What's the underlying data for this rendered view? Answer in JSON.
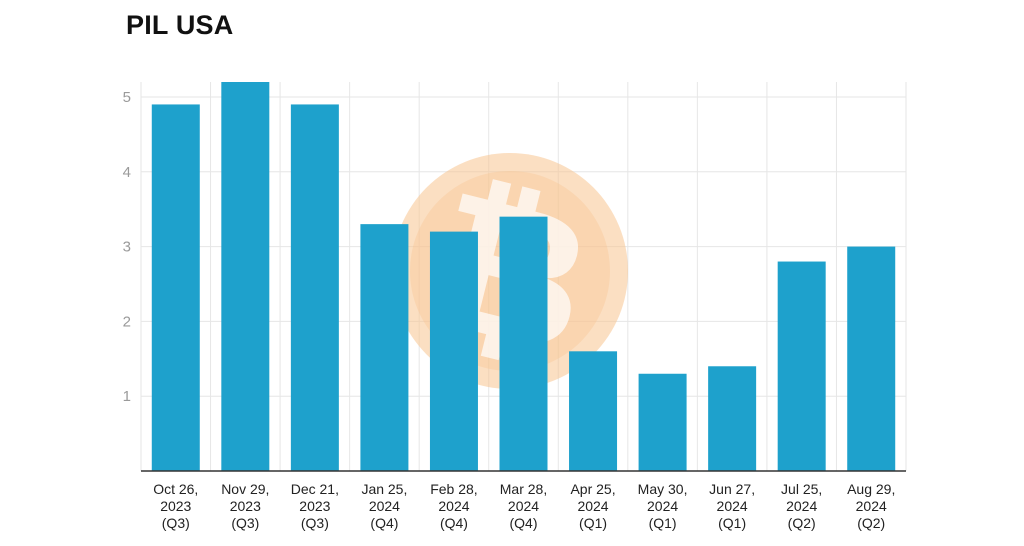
{
  "chart_data": {
    "type": "bar",
    "title": "PIL USA",
    "xlabel": "",
    "ylabel": "",
    "ylim": [
      0,
      5.2
    ],
    "y_ticks": [
      "1",
      "2",
      "3",
      "4",
      "5"
    ],
    "grid": true,
    "categories": [
      [
        "Oct 26,",
        "2023",
        "(Q3)"
      ],
      [
        "Nov 29,",
        "2023",
        "(Q3)"
      ],
      [
        "Dec 21,",
        "2023",
        "(Q3)"
      ],
      [
        "Jan 25,",
        "2024",
        "(Q4)"
      ],
      [
        "Feb 28,",
        "2024",
        "(Q4)"
      ],
      [
        "Mar 28,",
        "2024",
        "(Q4)"
      ],
      [
        "Apr 25,",
        "2024",
        "(Q1)"
      ],
      [
        "May 30,",
        "2024",
        "(Q1)"
      ],
      [
        "Jun 27,",
        "2024",
        "(Q1)"
      ],
      [
        "Jul 25,",
        "2024",
        "(Q2)"
      ],
      [
        "Aug 29,",
        "2024",
        "(Q2)"
      ]
    ],
    "values": [
      4.9,
      5.2,
      4.9,
      3.3,
      3.2,
      3.4,
      1.6,
      1.3,
      1.4,
      2.8,
      3.0
    ],
    "bar_color": "#1ea1cc",
    "grid_color": "#e6e6e6",
    "axis_color": "#333333",
    "watermark": {
      "icon": "bitcoin-logo-icon",
      "color": "#f8c48f"
    }
  }
}
